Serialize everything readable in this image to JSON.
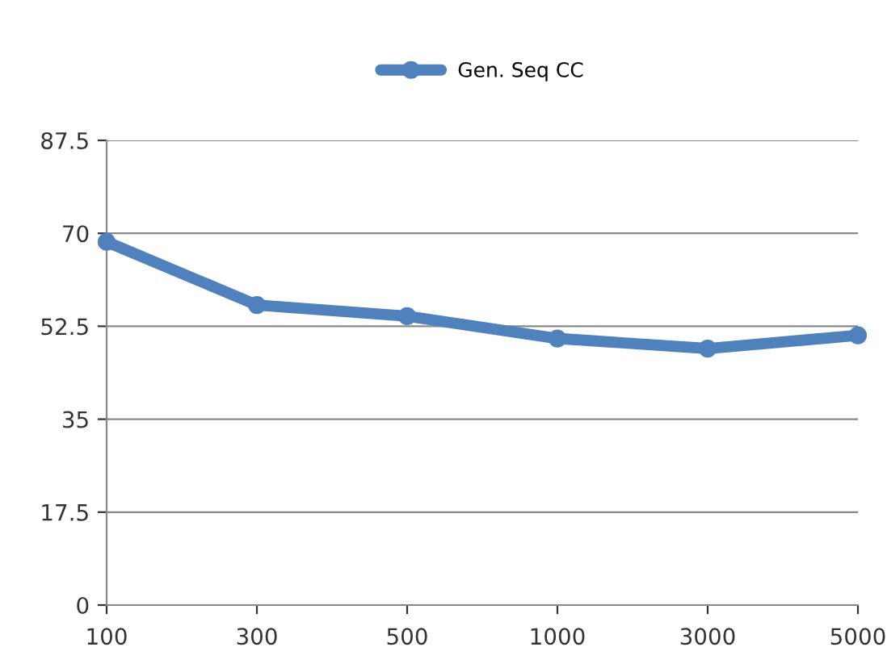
{
  "chart_data": {
    "type": "line",
    "categories": [
      "100",
      "300",
      "500",
      "1000",
      "3000",
      "5000"
    ],
    "series": [
      {
        "name": "Gen. Seq CC",
        "color": "#4f81bd",
        "values": [
          68.4,
          56.5,
          54.4,
          50.2,
          48.3,
          50.8
        ]
      }
    ],
    "ylim": [
      0,
      87.5
    ],
    "yticks": [
      0,
      17.5,
      35,
      52.5,
      70,
      87.5
    ],
    "grid": "y",
    "legend": "top",
    "marker": "circle",
    "line_style": "solid"
  }
}
